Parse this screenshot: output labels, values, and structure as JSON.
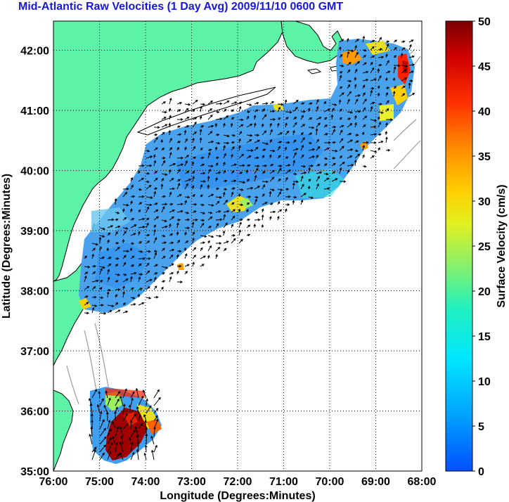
{
  "title": "Mid-Atlantic Raw Velocities (1 Day Avg) 2009/11/10 0600 GMT",
  "map": {
    "xlabel": "Longitude (Degrees:Minutes)",
    "ylabel": "Latitude (Degrees:Minutes)",
    "x_ticks": [
      "76:00",
      "75:00",
      "74:00",
      "73:00",
      "72:00",
      "71:00",
      "70:00",
      "69:00",
      "68:00"
    ],
    "y_ticks": [
      "35:00",
      "36:00",
      "37:00",
      "38:00",
      "39:00",
      "40:00",
      "41:00",
      "42:00"
    ],
    "land_color": "#5cf2a8",
    "grid": "dotted"
  },
  "colorbar": {
    "label": "Surface Velocity (cm/s)",
    "ticks": [
      "0",
      "5",
      "10",
      "15",
      "20",
      "25",
      "30",
      "35",
      "40",
      "45",
      "50"
    ],
    "range": [
      0,
      50
    ],
    "colormap": "jet"
  }
}
